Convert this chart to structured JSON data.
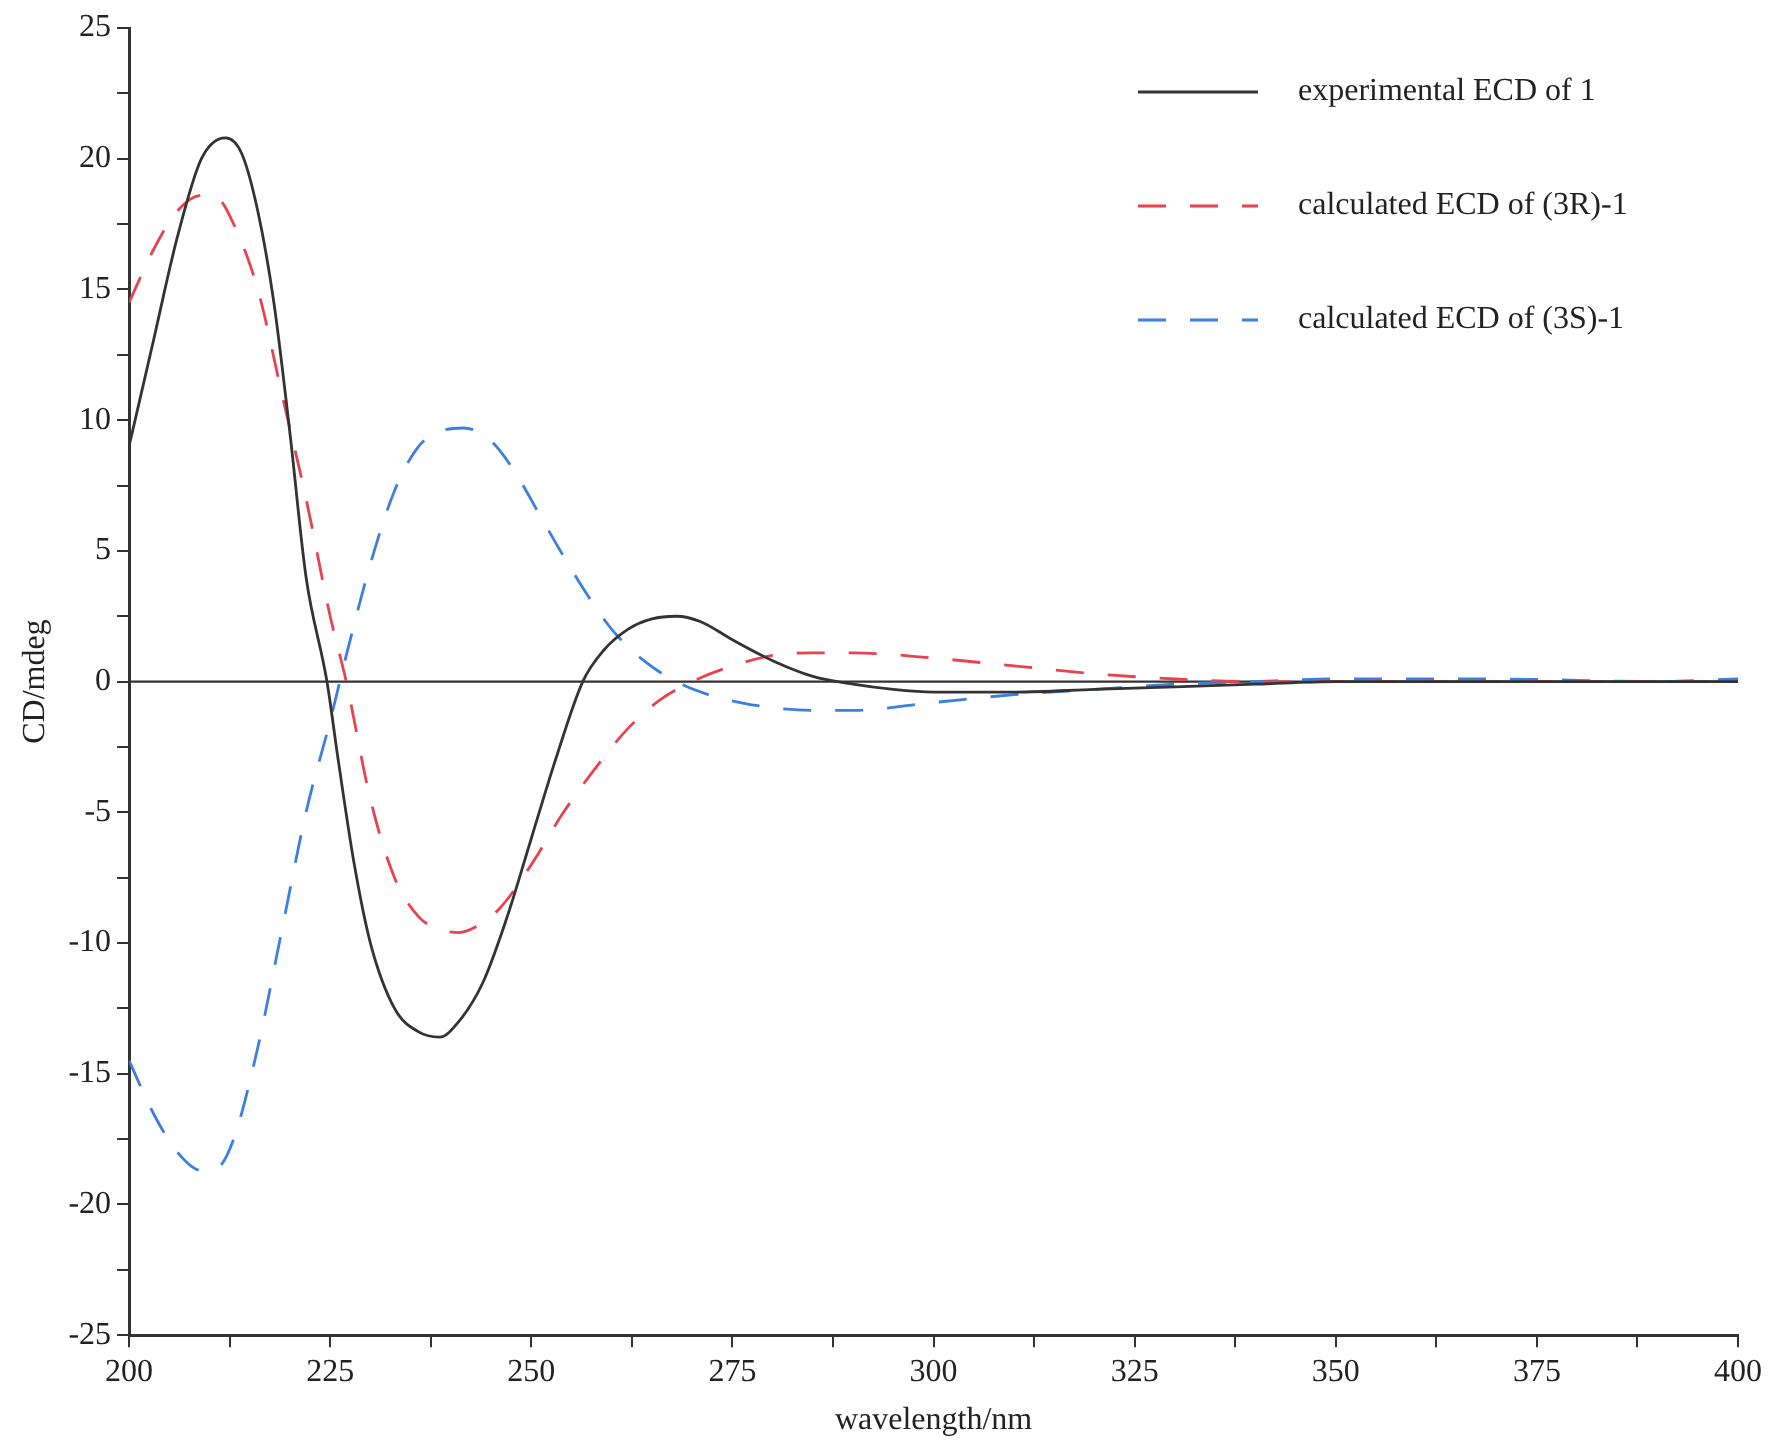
{
  "chart_data": {
    "type": "line",
    "xlabel": "wavelength/nm",
    "ylabel": "CD/mdeg",
    "xlim": [
      200,
      400
    ],
    "ylim": [
      -25,
      25
    ],
    "xticks": [
      200,
      {
        "value": 212.5,
        "label": null
      },
      225,
      {
        "value": 237.5,
        "label": null
      },
      250,
      {
        "value": 262.5,
        "label": null
      },
      275,
      {
        "value": 287.5,
        "label": null
      },
      300,
      {
        "value": 312.5,
        "label": null
      },
      325,
      {
        "value": 337.5,
        "label": null
      },
      350,
      {
        "value": 362.5,
        "label": null
      },
      375,
      {
        "value": 387.5,
        "label": null
      },
      400
    ],
    "yticks": [
      -25,
      {
        "value": -22.5,
        "label": null
      },
      -20,
      {
        "value": -17.5,
        "label": null
      },
      -15,
      {
        "value": -12.5,
        "label": null
      },
      -10,
      {
        "value": -7.5,
        "label": null
      },
      -5,
      {
        "value": -2.5,
        "label": null
      },
      0,
      {
        "value": 2.5,
        "label": null
      },
      5,
      {
        "value": 7.5,
        "label": null
      },
      10,
      {
        "value": 12.5,
        "label": null
      },
      15,
      {
        "value": 17.5,
        "label": null
      },
      20,
      {
        "value": 22.5,
        "label": null
      },
      25
    ],
    "grid": false,
    "legend": "top right",
    "marker": "none",
    "ref_lines": [
      {
        "axis": "y",
        "value": 0,
        "color": "#333333",
        "line_style": "solid"
      }
    ],
    "series": [
      {
        "name": "experimental ECD of 1",
        "color": "#333333",
        "line_style": "solid",
        "x": [
          200,
          203,
          206,
          209,
          212,
          214,
          216,
          218,
          220,
          222,
          224.6,
          226,
          228,
          230,
          233,
          236,
          238.6,
          241,
          244,
          247,
          250,
          253,
          256.4,
          259,
          262,
          265,
          268,
          271,
          275,
          280,
          285,
          290,
          295,
          300,
          310,
          320,
          330,
          340,
          350,
          400
        ],
        "values": [
          9,
          13,
          17,
          20,
          20.8,
          20.2,
          18,
          14.5,
          9.5,
          4,
          0,
          -3,
          -7,
          -10,
          -12.5,
          -13.4,
          -13.6,
          -13,
          -11.5,
          -9,
          -6,
          -3,
          0,
          1.2,
          2,
          2.4,
          2.5,
          2.3,
          1.6,
          0.8,
          0.2,
          -0.1,
          -0.3,
          -0.4,
          -0.4,
          -0.3,
          -0.2,
          -0.1,
          0,
          0
        ]
      },
      {
        "name": "calculated ECD of (3R)-1",
        "color": "#e8424f",
        "line_style": "dashed",
        "x": [
          200,
          203,
          206,
          209,
          211,
          213,
          216,
          219,
          222,
          225,
          227,
          230,
          233,
          236,
          238,
          241,
          243,
          246,
          250,
          254,
          258,
          262,
          266,
          270,
          275,
          280,
          285,
          290,
          300,
          310,
          320,
          330,
          340,
          400
        ],
        "values": [
          14.5,
          16.5,
          18,
          18.6,
          18.5,
          17.5,
          15,
          11,
          7,
          2.5,
          0,
          -4.5,
          -7.5,
          -9,
          -9.4,
          -9.6,
          -9.4,
          -8.7,
          -7,
          -5,
          -3.3,
          -1.8,
          -0.7,
          0,
          0.6,
          1,
          1.1,
          1.1,
          0.9,
          0.6,
          0.3,
          0.1,
          0,
          0
        ]
      },
      {
        "name": "calculated ECD of (3S)-1",
        "color": "#3b7fe0",
        "line_style": "dashed",
        "x": [
          200,
          203,
          206,
          209,
          211,
          213,
          216,
          219,
          222,
          225,
          227,
          230,
          233,
          236,
          239,
          241.6,
          245,
          248,
          251,
          254,
          257,
          260,
          264,
          268,
          272,
          276,
          280,
          285,
          290,
          300,
          310,
          320,
          330,
          340,
          350,
          360,
          370,
          380,
          390,
          400
        ],
        "values": [
          -14.5,
          -16.5,
          -18,
          -18.7,
          -18.6,
          -17.5,
          -14,
          -9.5,
          -5,
          -1.5,
          1,
          4.5,
          7.3,
          9,
          9.6,
          9.7,
          9.2,
          8,
          6.4,
          4.8,
          3.3,
          2,
          0.8,
          0,
          -0.5,
          -0.8,
          -1,
          -1.1,
          -1.1,
          -0.8,
          -0.5,
          -0.3,
          -0.1,
          0,
          0.1,
          0.1,
          0.1,
          0.05,
          0,
          0.1
        ]
      }
    ]
  }
}
